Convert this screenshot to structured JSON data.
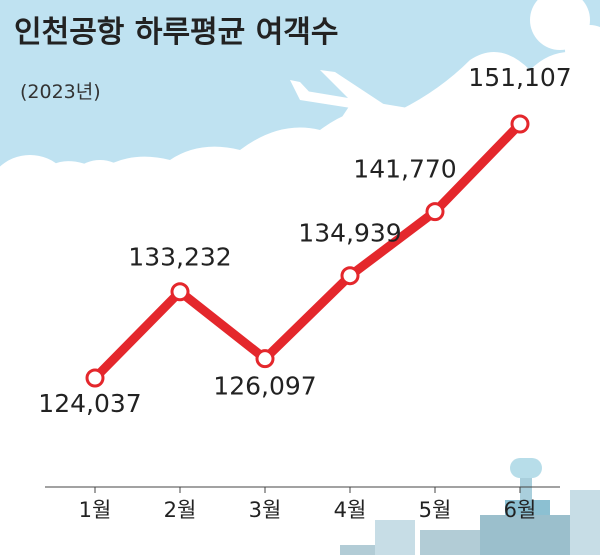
{
  "chart_data": {
    "type": "line",
    "title": "인천공항 하루평균 여객수",
    "subtitle": "(2023년)",
    "categories": [
      "1월",
      "2월",
      "3월",
      "4월",
      "5월",
      "6월"
    ],
    "values": [
      124037,
      133232,
      126097,
      134939,
      141770,
      151107
    ],
    "value_labels": [
      "124,037",
      "133,232",
      "126,097",
      "134,939",
      "141,770",
      "151,107"
    ],
    "color": "#e4272c"
  }
}
